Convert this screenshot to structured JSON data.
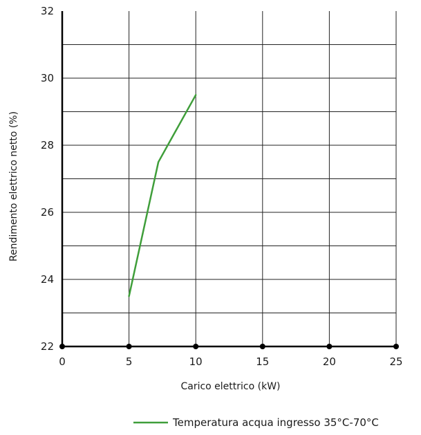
{
  "chart_data": {
    "type": "line",
    "title": "",
    "xlabel": "Carico elettrico (kW)",
    "ylabel": "Rendimento elettrico netto (%)",
    "xlim": [
      0,
      25
    ],
    "ylim": [
      22,
      32
    ],
    "xticks": [
      0,
      5,
      10,
      15,
      20,
      25
    ],
    "yticks": [
      22,
      24,
      26,
      28,
      30,
      32
    ],
    "y_minor_gridlines": [
      23,
      25,
      27,
      29,
      31
    ],
    "grid": true,
    "legend_position": "bottom-right",
    "series": [
      {
        "name": "Temperatura acqua ingresso 35°C-70°C",
        "color": "#3f9e3a",
        "x": [
          5,
          7.2,
          10
        ],
        "y": [
          23.5,
          27.5,
          29.5
        ]
      }
    ]
  }
}
